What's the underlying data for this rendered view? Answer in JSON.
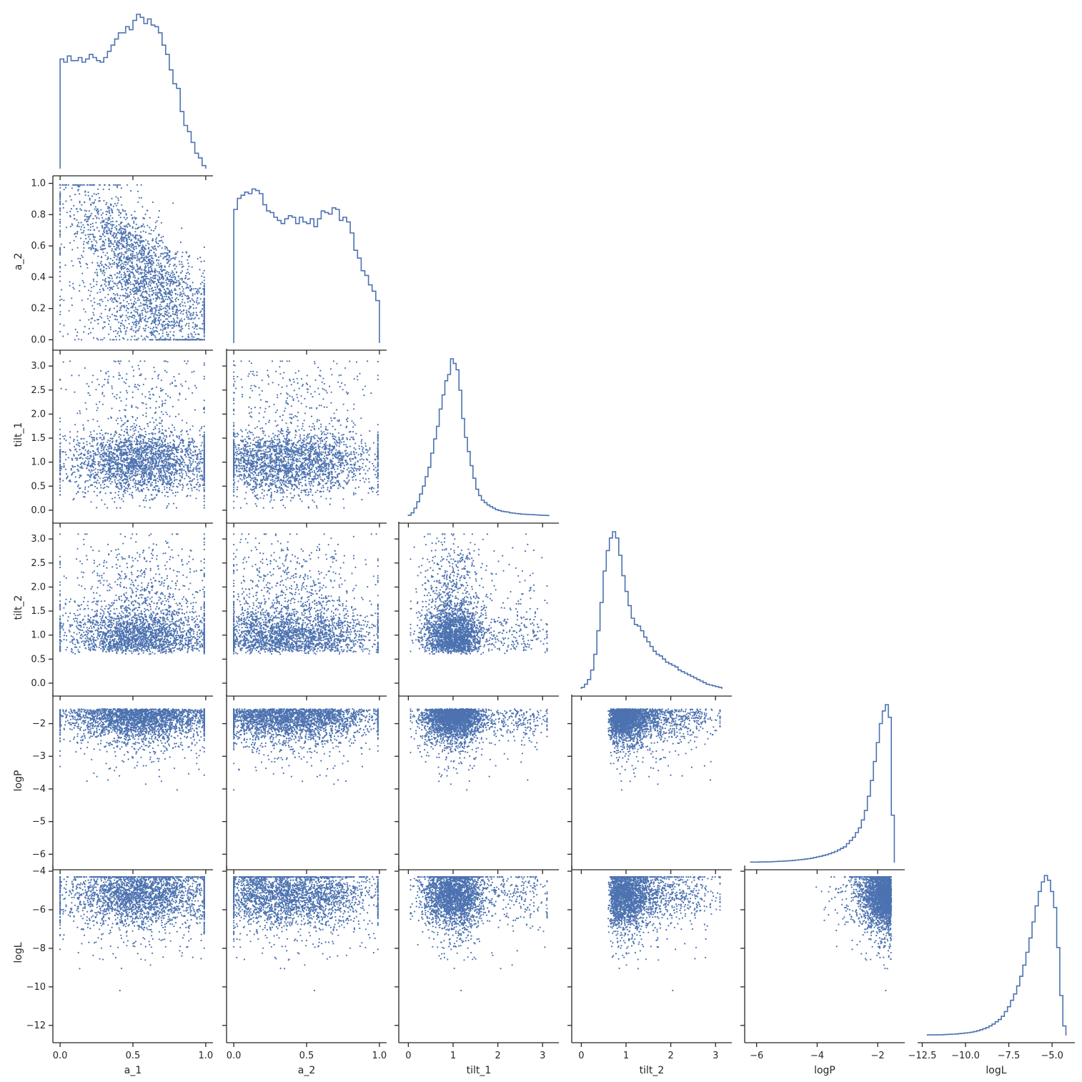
{
  "chart_data": {
    "type": "pairplot-corner",
    "variables": [
      "a_1",
      "a_2",
      "tilt_1",
      "tilt_2",
      "logP",
      "logL"
    ],
    "color": "#4c72b0",
    "diagonal": "step-histogram",
    "off_diagonal": "scatter",
    "grid": false,
    "ranges": {
      "a_1": [
        -0.03,
        1.03
      ],
      "a_2": [
        -0.03,
        1.03
      ],
      "tilt_1": [
        -0.15,
        3.3
      ],
      "tilt_2": [
        -0.15,
        3.3
      ],
      "logP": [
        -6.3,
        -1.2
      ],
      "logL": [
        -12.6,
        -3.85
      ]
    },
    "ticks": {
      "a_1": {
        "values": [
          0.0,
          0.5,
          1.0
        ],
        "labels": [
          "0.0",
          "0.5",
          "1.0"
        ]
      },
      "a_2": {
        "values": [
          0.0,
          0.2,
          0.4,
          0.6,
          0.8,
          1.0
        ],
        "labels": [
          "0.0",
          "0.2",
          "0.4",
          "0.6",
          "0.8",
          "1.0"
        ]
      },
      "a_2_x": {
        "values": [
          0.0,
          0.5,
          1.0
        ],
        "labels": [
          "0.0",
          "0.5",
          "1.0"
        ]
      },
      "tilt_1": {
        "values": [
          0.0,
          0.5,
          1.0,
          1.5,
          2.0,
          2.5,
          3.0
        ],
        "labels": [
          "0.0",
          "0.5",
          "1.0",
          "1.5",
          "2.0",
          "2.5",
          "3.0"
        ]
      },
      "tilt_1_x": {
        "values": [
          0,
          1,
          2,
          3
        ],
        "labels": [
          "0",
          "1",
          "2",
          "3"
        ]
      },
      "tilt_2": {
        "values": [
          0.0,
          0.5,
          1.0,
          1.5,
          2.0,
          2.5,
          3.0
        ],
        "labels": [
          "0.0",
          "0.5",
          "1.0",
          "1.5",
          "2.0",
          "2.5",
          "3.0"
        ]
      },
      "tilt_2_x": {
        "values": [
          0,
          1,
          2,
          3
        ],
        "labels": [
          "0",
          "1",
          "2",
          "3"
        ]
      },
      "logP": {
        "values": [
          -2,
          -3,
          -4,
          -5,
          -6
        ],
        "labels": [
          "−2",
          "−3",
          "−4",
          "−5",
          "−6"
        ]
      },
      "logP_x": {
        "values": [
          -6,
          -4,
          -2
        ],
        "labels": [
          "−6",
          "−4",
          "−2"
        ]
      },
      "logL": {
        "values": [
          -4,
          -6,
          -8,
          -10,
          -12
        ],
        "labels": [
          "−4",
          "−6",
          "−8",
          "−10",
          "−12"
        ]
      },
      "logL_x": {
        "values": [
          -12.5,
          -10.0,
          -7.5,
          -5.0
        ],
        "labels": [
          "−12.5",
          "−10.0",
          "−7.5",
          "−5.0"
        ]
      }
    },
    "histograms": {
      "a_1": {
        "edges": [
          0.0,
          1.0
        ],
        "counts": [
          0.71,
          0.69,
          0.73,
          0.7,
          0.7,
          0.72,
          0.69,
          0.71,
          0.74,
          0.72,
          0.7,
          0.69,
          0.72,
          0.76,
          0.8,
          0.84,
          0.88,
          0.88,
          0.92,
          0.9,
          0.96,
          1.0,
          0.98,
          0.94,
          0.97,
          0.93,
          0.92,
          0.88,
          0.8,
          0.74,
          0.64,
          0.55,
          0.52,
          0.37,
          0.28,
          0.24,
          0.17,
          0.1,
          0.07,
          0.02
        ]
      },
      "a_2": {
        "edges": [
          0.0,
          1.0
        ],
        "counts": [
          0.85,
          0.92,
          0.94,
          0.96,
          0.95,
          0.98,
          0.97,
          0.95,
          0.88,
          0.84,
          0.83,
          0.8,
          0.78,
          0.76,
          0.79,
          0.81,
          0.8,
          0.76,
          0.8,
          0.77,
          0.76,
          0.79,
          0.74,
          0.79,
          0.84,
          0.83,
          0.82,
          0.86,
          0.85,
          0.78,
          0.8,
          0.77,
          0.7,
          0.59,
          0.54,
          0.46,
          0.43,
          0.37,
          0.33,
          0.27
        ]
      },
      "tilt_1": {
        "edges": [
          0.0,
          3.14
        ],
        "counts": [
          0.005,
          0.02,
          0.05,
          0.09,
          0.14,
          0.19,
          0.25,
          0.31,
          0.4,
          0.49,
          0.57,
          0.68,
          0.77,
          0.86,
          0.9,
          1.0,
          0.97,
          0.93,
          0.8,
          0.62,
          0.5,
          0.41,
          0.32,
          0.24,
          0.17,
          0.13,
          0.1,
          0.085,
          0.07,
          0.06,
          0.05,
          0.04,
          0.035,
          0.03,
          0.027,
          0.025,
          0.02,
          0.018,
          0.016,
          0.014,
          0.012,
          0.011,
          0.01,
          0.009,
          0.008,
          0.007,
          0.006,
          0.005,
          0.004,
          0.003
        ]
      },
      "tilt_2": {
        "edges": [
          0.0,
          3.14
        ],
        "counts": [
          0.01,
          0.03,
          0.06,
          0.12,
          0.22,
          0.37,
          0.55,
          0.75,
          0.88,
          0.96,
          1.0,
          0.96,
          0.85,
          0.72,
          0.62,
          0.53,
          0.45,
          0.41,
          0.4,
          0.37,
          0.33,
          0.3,
          0.27,
          0.24,
          0.22,
          0.21,
          0.19,
          0.17,
          0.16,
          0.15,
          0.14,
          0.12,
          0.11,
          0.1,
          0.09,
          0.08,
          0.07,
          0.06,
          0.05,
          0.04,
          0.03,
          0.025,
          0.02,
          0.015,
          0.01
        ]
      },
      "logP": {
        "edges": [
          -6.2,
          -1.45
        ],
        "counts": [
          0.003,
          0.003,
          0.003,
          0.004,
          0.004,
          0.005,
          0.005,
          0.006,
          0.007,
          0.008,
          0.009,
          0.01,
          0.011,
          0.012,
          0.014,
          0.016,
          0.018,
          0.02,
          0.022,
          0.025,
          0.028,
          0.032,
          0.036,
          0.04,
          0.045,
          0.05,
          0.056,
          0.063,
          0.07,
          0.08,
          0.09,
          0.1,
          0.12,
          0.14,
          0.16,
          0.19,
          0.22,
          0.27,
          0.33,
          0.42,
          0.52,
          0.64,
          0.76,
          0.88,
          0.96,
          1.0,
          0.92,
          0.3
        ]
      },
      "logL": {
        "edges": [
          -12.2,
          -4.2
        ],
        "counts": [
          0.004,
          0.004,
          0.004,
          0.005,
          0.005,
          0.006,
          0.007,
          0.008,
          0.009,
          0.01,
          0.012,
          0.014,
          0.016,
          0.018,
          0.021,
          0.025,
          0.03,
          0.036,
          0.043,
          0.05,
          0.06,
          0.072,
          0.086,
          0.1,
          0.12,
          0.15,
          0.18,
          0.22,
          0.26,
          0.31,
          0.37,
          0.44,
          0.52,
          0.61,
          0.71,
          0.81,
          0.9,
          0.96,
          1.0,
          0.97,
          0.9,
          0.8,
          0.55,
          0.25,
          0.06
        ]
      }
    }
  }
}
